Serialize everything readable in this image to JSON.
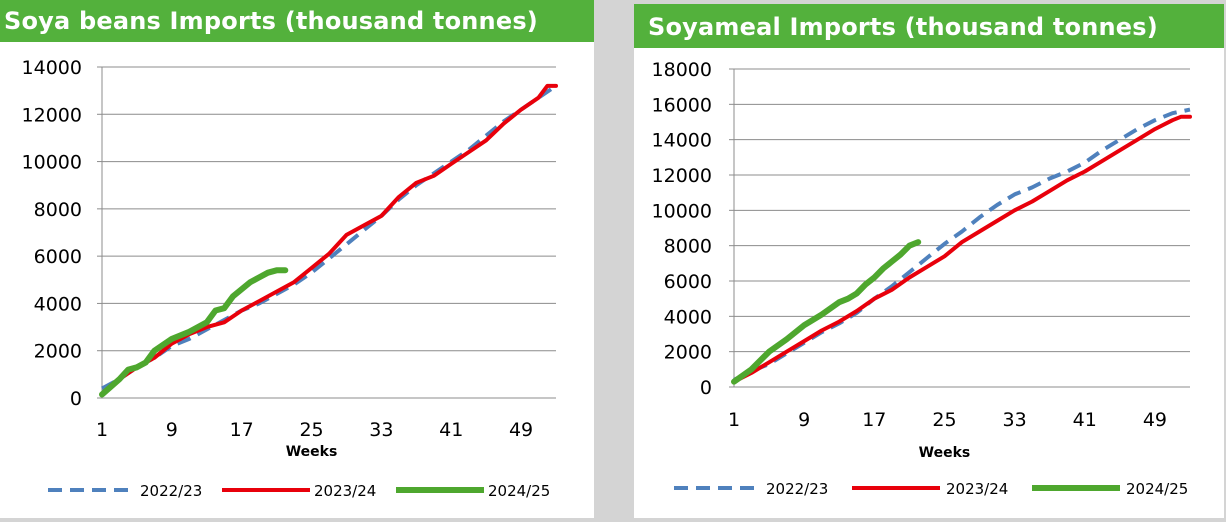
{
  "charts": [
    {
      "id": "soyabeans",
      "title": "Soya beans Imports (thousand tonnes)",
      "chart_data": {
        "type": "line",
        "xlabel": "Weeks",
        "ylabel": "",
        "xlim": [
          1,
          53
        ],
        "ylim": [
          0,
          14000
        ],
        "xticks": [
          1,
          9,
          17,
          25,
          33,
          41,
          49
        ],
        "yticks": [
          0,
          2000,
          4000,
          6000,
          8000,
          10000,
          12000,
          14000
        ],
        "grid": true,
        "legend_position": "bottom",
        "series": [
          {
            "name": "2022/23",
            "color": "#4f81bd",
            "dash": true,
            "x": [
              1,
              3,
              5,
              7,
              9,
              11,
              13,
              15,
              17,
              19,
              21,
              23,
              25,
              27,
              29,
              31,
              33,
              35,
              37,
              39,
              41,
              43,
              45,
              47,
              49,
              51,
              53
            ],
            "y": [
              400,
              800,
              1300,
              1700,
              2200,
              2500,
              2900,
              3300,
              3700,
              4000,
              4400,
              4800,
              5300,
              5900,
              6500,
              7100,
              7700,
              8400,
              9000,
              9500,
              10000,
              10500,
              11100,
              11700,
              12200,
              12700,
              13200
            ]
          },
          {
            "name": "2023/24",
            "color": "#e8000b",
            "dash": false,
            "x": [
              1,
              3,
              5,
              7,
              9,
              11,
              13,
              15,
              17,
              19,
              21,
              23,
              25,
              27,
              29,
              31,
              33,
              35,
              37,
              39,
              41,
              43,
              45,
              47,
              49,
              51,
              52,
              53
            ],
            "y": [
              150,
              800,
              1300,
              1700,
              2300,
              2700,
              3000,
              3200,
              3700,
              4100,
              4500,
              4900,
              5500,
              6100,
              6900,
              7300,
              7700,
              8500,
              9100,
              9400,
              9900,
              10400,
              10900,
              11600,
              12200,
              12700,
              13200,
              13200
            ]
          },
          {
            "name": "2024/25",
            "color": "#4ea72e",
            "dash": false,
            "x": [
              1,
              3,
              4,
              5,
              6,
              7,
              9,
              11,
              13,
              14,
              15,
              16,
              17,
              18,
              19,
              20,
              21,
              22
            ],
            "y": [
              150,
              800,
              1200,
              1300,
              1500,
              2000,
              2500,
              2800,
              3200,
              3700,
              3800,
              4300,
              4600,
              4900,
              5100,
              5300,
              5400,
              5400
            ]
          }
        ]
      }
    },
    {
      "id": "soyameal",
      "title": "Soyameal Imports (thousand tonnes)",
      "chart_data": {
        "type": "line",
        "xlabel": "Weeks",
        "ylabel": "",
        "xlim": [
          1,
          53
        ],
        "ylim": [
          0,
          18000
        ],
        "xticks": [
          1,
          9,
          17,
          25,
          33,
          41,
          49
        ],
        "yticks": [
          0,
          2000,
          4000,
          6000,
          8000,
          10000,
          12000,
          14000,
          16000,
          18000
        ],
        "grid": true,
        "legend_position": "bottom",
        "series": [
          {
            "name": "2022/23",
            "color": "#4f81bd",
            "dash": true,
            "x": [
              1,
              3,
              5,
              7,
              9,
              11,
              13,
              15,
              17,
              19,
              21,
              23,
              25,
              27,
              29,
              31,
              33,
              35,
              37,
              39,
              41,
              43,
              45,
              47,
              49,
              51,
              53
            ],
            "y": [
              400,
              900,
              1300,
              1900,
              2500,
              3100,
              3600,
              4200,
              5000,
              5700,
              6500,
              7300,
              8100,
              8800,
              9600,
              10300,
              10900,
              11300,
              11800,
              12200,
              12700,
              13400,
              14000,
              14600,
              15100,
              15500,
              15700
            ]
          },
          {
            "name": "2023/24",
            "color": "#e8000b",
            "dash": false,
            "x": [
              1,
              3,
              5,
              7,
              9,
              11,
              13,
              15,
              17,
              19,
              21,
              23,
              25,
              27,
              29,
              31,
              33,
              35,
              37,
              39,
              41,
              43,
              45,
              47,
              49,
              51,
              52,
              53
            ],
            "y": [
              300,
              800,
              1400,
              2000,
              2600,
              3200,
              3700,
              4300,
              5000,
              5500,
              6200,
              6800,
              7400,
              8200,
              8800,
              9400,
              10000,
              10500,
              11100,
              11700,
              12200,
              12800,
              13400,
              14000,
              14600,
              15100,
              15300,
              15300
            ]
          },
          {
            "name": "2024/25",
            "color": "#4ea72e",
            "dash": false,
            "x": [
              1,
              3,
              5,
              7,
              9,
              11,
              13,
              14,
              15,
              16,
              17,
              18,
              19,
              20,
              21,
              22
            ],
            "y": [
              300,
              1000,
              2000,
              2700,
              3500,
              4100,
              4800,
              5000,
              5300,
              5800,
              6200,
              6700,
              7100,
              7500,
              8000,
              8200
            ]
          }
        ]
      }
    }
  ]
}
